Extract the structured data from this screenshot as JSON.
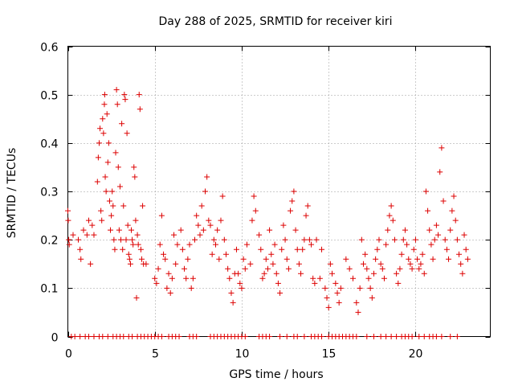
{
  "chart_data": {
    "type": "scatter",
    "title": "Day 288 of 2025, SRMTID for receiver kiri",
    "xlabel": "GPS time / hours",
    "ylabel": "SRMTID / TECUs",
    "xlim": [
      0,
      24.3
    ],
    "ylim": [
      0,
      0.6
    ],
    "x_ticks": [
      0,
      5,
      10,
      15,
      20
    ],
    "x_tick_labels": [
      "0",
      "5",
      "10",
      "15",
      "20"
    ],
    "y_ticks": [
      0,
      0.1,
      0.2,
      0.3,
      0.4,
      0.5,
      0.6
    ],
    "y_tick_labels": [
      "0",
      "0.1",
      "0.2",
      "0.3",
      "0.4",
      "0.5",
      "0.6"
    ],
    "grid": true,
    "legend": "none",
    "marker": "plus",
    "color": "#dd0000",
    "series": [
      {
        "name": "SRMTID",
        "points": [
          [
            0.0,
            0.26
          ],
          [
            0.02,
            0.24
          ],
          [
            0.05,
            0.2
          ],
          [
            0.08,
            0.19
          ],
          [
            0.3,
            0.21
          ],
          [
            0.6,
            0.2
          ],
          [
            0.7,
            0.18
          ],
          [
            0.75,
            0.16
          ],
          [
            0.9,
            0.22
          ],
          [
            1.1,
            0.21
          ],
          [
            1.2,
            0.24
          ],
          [
            1.3,
            0.15
          ],
          [
            1.4,
            0.23
          ],
          [
            1.5,
            0.21
          ],
          [
            1.7,
            0.32
          ],
          [
            1.75,
            0.37
          ],
          [
            1.8,
            0.4
          ],
          [
            1.85,
            0.43
          ],
          [
            1.9,
            0.26
          ],
          [
            1.95,
            0.24
          ],
          [
            2.0,
            0.45
          ],
          [
            2.05,
            0.42
          ],
          [
            2.1,
            0.48
          ],
          [
            2.12,
            0.5
          ],
          [
            2.15,
            0.33
          ],
          [
            2.2,
            0.3
          ],
          [
            2.25,
            0.46
          ],
          [
            2.3,
            0.36
          ],
          [
            2.35,
            0.4
          ],
          [
            2.4,
            0.28
          ],
          [
            2.45,
            0.22
          ],
          [
            2.5,
            0.25
          ],
          [
            2.55,
            0.3
          ],
          [
            2.6,
            0.27
          ],
          [
            2.65,
            0.2
          ],
          [
            2.7,
            0.18
          ],
          [
            2.75,
            0.38
          ],
          [
            2.8,
            0.51
          ],
          [
            2.85,
            0.48
          ],
          [
            2.9,
            0.35
          ],
          [
            2.95,
            0.22
          ],
          [
            3.0,
            0.31
          ],
          [
            3.05,
            0.2
          ],
          [
            3.1,
            0.44
          ],
          [
            3.15,
            0.18
          ],
          [
            3.2,
            0.27
          ],
          [
            3.25,
            0.5
          ],
          [
            3.3,
            0.49
          ],
          [
            3.35,
            0.2
          ],
          [
            3.4,
            0.42
          ],
          [
            3.45,
            0.23
          ],
          [
            3.5,
            0.17
          ],
          [
            3.55,
            0.16
          ],
          [
            3.6,
            0.15
          ],
          [
            3.65,
            0.22
          ],
          [
            3.7,
            0.2
          ],
          [
            3.75,
            0.19
          ],
          [
            3.8,
            0.35
          ],
          [
            3.85,
            0.33
          ],
          [
            3.9,
            0.24
          ],
          [
            3.95,
            0.08
          ],
          [
            4.0,
            0.21
          ],
          [
            4.05,
            0.19
          ],
          [
            4.1,
            0.5
          ],
          [
            4.15,
            0.47
          ],
          [
            4.2,
            0.18
          ],
          [
            4.25,
            0.16
          ],
          [
            4.3,
            0.27
          ],
          [
            4.35,
            0.15
          ],
          [
            4.5,
            0.15
          ],
          [
            5.0,
            0.12
          ],
          [
            5.1,
            0.11
          ],
          [
            5.2,
            0.14
          ],
          [
            5.3,
            0.19
          ],
          [
            5.4,
            0.25
          ],
          [
            5.5,
            0.17
          ],
          [
            5.6,
            0.16
          ],
          [
            5.7,
            0.1
          ],
          [
            5.8,
            0.13
          ],
          [
            5.9,
            0.09
          ],
          [
            6.0,
            0.12
          ],
          [
            6.1,
            0.21
          ],
          [
            6.2,
            0.15
          ],
          [
            6.3,
            0.19
          ],
          [
            6.5,
            0.22
          ],
          [
            6.6,
            0.18
          ],
          [
            6.7,
            0.14
          ],
          [
            6.8,
            0.12
          ],
          [
            6.9,
            0.16
          ],
          [
            7.0,
            0.19
          ],
          [
            7.1,
            0.1
          ],
          [
            7.2,
            0.12
          ],
          [
            7.3,
            0.2
          ],
          [
            7.4,
            0.25
          ],
          [
            7.5,
            0.23
          ],
          [
            7.6,
            0.21
          ],
          [
            7.7,
            0.27
          ],
          [
            7.8,
            0.22
          ],
          [
            7.9,
            0.3
          ],
          [
            8.0,
            0.33
          ],
          [
            8.1,
            0.24
          ],
          [
            8.2,
            0.23
          ],
          [
            8.3,
            0.17
          ],
          [
            8.4,
            0.2
          ],
          [
            8.5,
            0.19
          ],
          [
            8.6,
            0.22
          ],
          [
            8.7,
            0.16
          ],
          [
            8.8,
            0.24
          ],
          [
            8.9,
            0.29
          ],
          [
            9.0,
            0.2
          ],
          [
            9.1,
            0.17
          ],
          [
            9.2,
            0.14
          ],
          [
            9.3,
            0.12
          ],
          [
            9.4,
            0.09
          ],
          [
            9.5,
            0.07
          ],
          [
            9.6,
            0.13
          ],
          [
            9.7,
            0.18
          ],
          [
            9.8,
            0.13
          ],
          [
            9.9,
            0.11
          ],
          [
            10.0,
            0.1
          ],
          [
            10.1,
            0.16
          ],
          [
            10.2,
            0.14
          ],
          [
            10.3,
            0.19
          ],
          [
            10.5,
            0.15
          ],
          [
            10.6,
            0.24
          ],
          [
            10.7,
            0.29
          ],
          [
            10.8,
            0.26
          ],
          [
            11.0,
            0.21
          ],
          [
            11.1,
            0.18
          ],
          [
            11.2,
            0.12
          ],
          [
            11.3,
            0.13
          ],
          [
            11.4,
            0.16
          ],
          [
            11.5,
            0.14
          ],
          [
            11.6,
            0.22
          ],
          [
            11.7,
            0.17
          ],
          [
            11.8,
            0.15
          ],
          [
            11.9,
            0.19
          ],
          [
            12.0,
            0.13
          ],
          [
            12.1,
            0.11
          ],
          [
            12.2,
            0.09
          ],
          [
            12.3,
            0.18
          ],
          [
            12.4,
            0.23
          ],
          [
            12.5,
            0.2
          ],
          [
            12.6,
            0.16
          ],
          [
            12.7,
            0.14
          ],
          [
            12.8,
            0.26
          ],
          [
            12.9,
            0.28
          ],
          [
            13.0,
            0.3
          ],
          [
            13.1,
            0.22
          ],
          [
            13.2,
            0.18
          ],
          [
            13.3,
            0.15
          ],
          [
            13.4,
            0.13
          ],
          [
            13.5,
            0.18
          ],
          [
            13.6,
            0.2
          ],
          [
            13.7,
            0.25
          ],
          [
            13.8,
            0.27
          ],
          [
            13.9,
            0.2
          ],
          [
            14.0,
            0.19
          ],
          [
            14.1,
            0.12
          ],
          [
            14.2,
            0.11
          ],
          [
            14.3,
            0.2
          ],
          [
            14.5,
            0.12
          ],
          [
            14.6,
            0.18
          ],
          [
            14.8,
            0.1
          ],
          [
            14.9,
            0.08
          ],
          [
            15.0,
            0.06
          ],
          [
            15.1,
            0.15
          ],
          [
            15.2,
            0.13
          ],
          [
            15.4,
            0.11
          ],
          [
            15.5,
            0.09
          ],
          [
            15.6,
            0.07
          ],
          [
            15.7,
            0.1
          ],
          [
            16.0,
            0.16
          ],
          [
            16.2,
            0.14
          ],
          [
            16.4,
            0.12
          ],
          [
            16.6,
            0.07
          ],
          [
            16.7,
            0.05
          ],
          [
            16.8,
            0.1
          ],
          [
            16.9,
            0.2
          ],
          [
            17.0,
            0.15
          ],
          [
            17.1,
            0.17
          ],
          [
            17.2,
            0.14
          ],
          [
            17.3,
            0.12
          ],
          [
            17.4,
            0.1
          ],
          [
            17.5,
            0.08
          ],
          [
            17.6,
            0.13
          ],
          [
            17.7,
            0.16
          ],
          [
            17.8,
            0.18
          ],
          [
            17.9,
            0.2
          ],
          [
            18.0,
            0.15
          ],
          [
            18.1,
            0.14
          ],
          [
            18.2,
            0.12
          ],
          [
            18.3,
            0.19
          ],
          [
            18.4,
            0.22
          ],
          [
            18.5,
            0.25
          ],
          [
            18.6,
            0.27
          ],
          [
            18.7,
            0.24
          ],
          [
            18.8,
            0.2
          ],
          [
            18.9,
            0.13
          ],
          [
            19.0,
            0.11
          ],
          [
            19.1,
            0.14
          ],
          [
            19.2,
            0.17
          ],
          [
            19.3,
            0.2
          ],
          [
            19.4,
            0.22
          ],
          [
            19.5,
            0.19
          ],
          [
            19.6,
            0.16
          ],
          [
            19.7,
            0.15
          ],
          [
            19.8,
            0.14
          ],
          [
            19.9,
            0.18
          ],
          [
            20.0,
            0.2
          ],
          [
            20.1,
            0.16
          ],
          [
            20.2,
            0.14
          ],
          [
            20.3,
            0.15
          ],
          [
            20.4,
            0.17
          ],
          [
            20.5,
            0.13
          ],
          [
            20.6,
            0.3
          ],
          [
            20.7,
            0.26
          ],
          [
            20.8,
            0.22
          ],
          [
            20.9,
            0.19
          ],
          [
            21.0,
            0.16
          ],
          [
            21.1,
            0.2
          ],
          [
            21.2,
            0.23
          ],
          [
            21.3,
            0.21
          ],
          [
            21.4,
            0.34
          ],
          [
            21.5,
            0.39
          ],
          [
            21.6,
            0.28
          ],
          [
            21.7,
            0.2
          ],
          [
            21.8,
            0.18
          ],
          [
            21.9,
            0.16
          ],
          [
            22.0,
            0.22
          ],
          [
            22.1,
            0.26
          ],
          [
            22.2,
            0.29
          ],
          [
            22.3,
            0.24
          ],
          [
            22.4,
            0.2
          ],
          [
            22.5,
            0.17
          ],
          [
            22.6,
            0.15
          ],
          [
            22.7,
            0.13
          ],
          [
            22.8,
            0.21
          ],
          [
            22.9,
            0.18
          ],
          [
            23.0,
            0.16
          ]
        ],
        "zero_points_x": [
          0.2,
          0.4,
          0.7,
          1.0,
          1.2,
          1.5,
          1.8,
          2.0,
          2.3,
          2.6,
          2.8,
          3.0,
          3.2,
          3.5,
          3.7,
          4.0,
          4.2,
          4.4,
          4.6,
          4.8,
          5.0,
          5.2,
          5.4,
          5.8,
          6.0,
          6.2,
          6.4,
          7.0,
          7.2,
          7.4,
          8.2,
          8.4,
          8.6,
          8.8,
          9.0,
          9.2,
          9.4,
          9.6,
          9.8,
          10.0,
          10.2,
          11.0,
          11.2,
          11.4,
          11.6,
          12.2,
          12.6,
          13.0,
          13.2,
          13.6,
          14.0,
          14.2,
          14.4,
          14.6,
          15.0,
          15.2,
          15.4,
          15.6,
          15.8,
          16.0,
          16.2,
          16.4,
          16.6,
          17.2,
          17.6,
          18.0,
          18.3,
          18.6,
          18.9,
          19.2,
          19.4,
          19.6,
          19.8,
          20.2,
          20.5,
          20.8,
          21.0,
          21.2,
          21.5,
          22.0,
          22.4
        ]
      }
    ]
  }
}
